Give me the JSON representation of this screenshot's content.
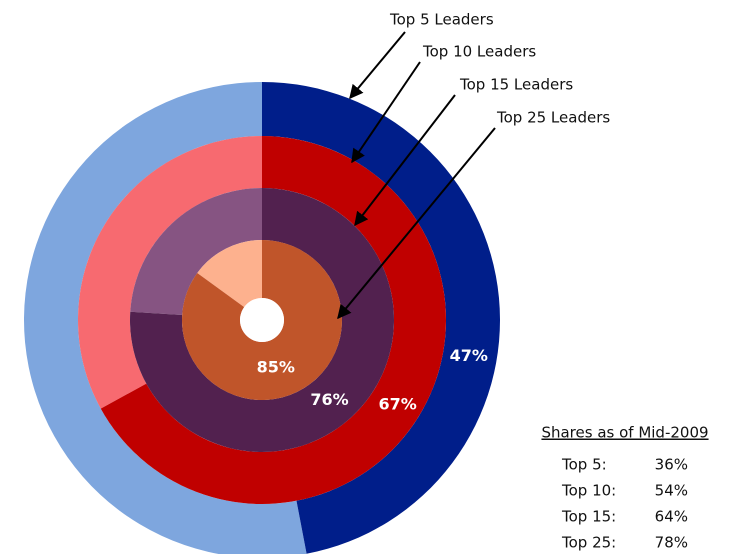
{
  "chart_data": {
    "type": "nested-donut",
    "categories": [
      "Top 5 Leaders",
      "Top 10 Leaders",
      "Top 15 Leaders",
      "Top 25 Leaders"
    ],
    "values": [
      47,
      67,
      76,
      85
    ],
    "value_labels": [
      "47%",
      "67%",
      "76%",
      "85%"
    ],
    "colors": [
      "#001e8a",
      "#c00000",
      "#52214f",
      "#c0552a"
    ],
    "remainder_colors": [
      "#7ea6de",
      "#f76a70",
      "#865482",
      "#fdb18e"
    ],
    "table": {
      "title": "Shares as of Mid-2009",
      "rows": [
        [
          "Top 5:",
          "36%"
        ],
        [
          "Top 10:",
          "54%"
        ],
        [
          "Top 15:",
          "64%"
        ],
        [
          "Top 25:",
          "78%"
        ]
      ]
    }
  }
}
